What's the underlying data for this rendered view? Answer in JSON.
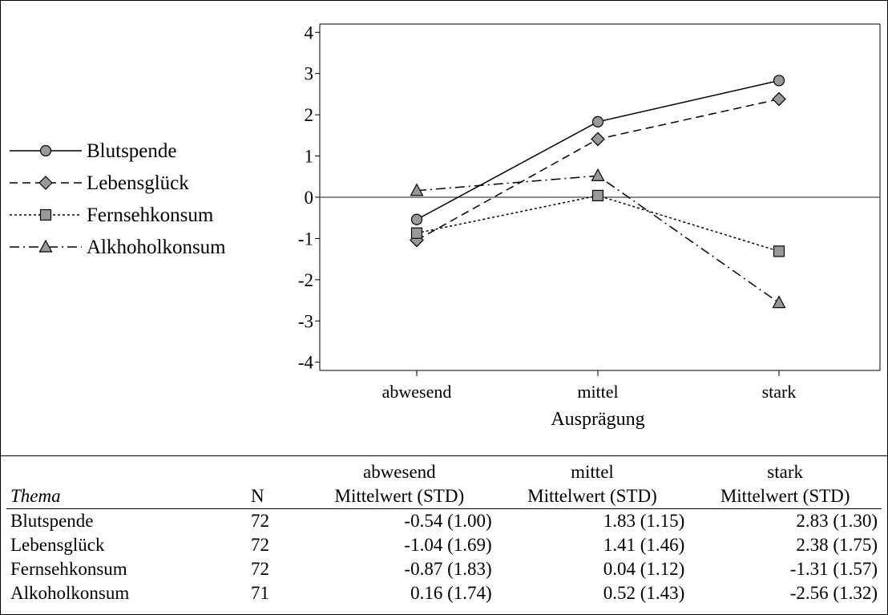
{
  "chart_data": {
    "type": "line",
    "xlabel": "Ausprägung",
    "categories": [
      "abwesend",
      "mittel",
      "stark"
    ],
    "yticks": [
      4,
      3,
      2,
      1,
      0,
      -1,
      -2,
      -3,
      -4
    ],
    "ylim": [
      -4.2,
      4.2
    ],
    "legend_position": "left",
    "series": [
      {
        "name": "Blutspende",
        "marker": "circle",
        "dash": "solid",
        "values": [
          -0.54,
          1.83,
          2.83
        ]
      },
      {
        "name": "Lebensglück",
        "marker": "diamond",
        "dash": "dashed",
        "values": [
          -1.04,
          1.41,
          2.38
        ]
      },
      {
        "name": "Fernsehkonsum",
        "marker": "square",
        "dash": "dotted",
        "values": [
          -0.87,
          0.04,
          -1.31
        ]
      },
      {
        "name": "Alkhoholkonsum",
        "marker": "triangle",
        "dash": "dashdot",
        "values": [
          0.16,
          0.52,
          -2.56
        ]
      }
    ],
    "marker_color": "#999999"
  },
  "table": {
    "groups": [
      "abwesend",
      "mittel",
      "stark"
    ],
    "col_thema": "Thema",
    "col_n": "N",
    "col_stat": "Mittelwert (STD)",
    "rows": [
      {
        "thema": "Blutspende",
        "n": "72",
        "cells": [
          "-0.54 (1.00)",
          "1.83 (1.15)",
          "2.83 (1.30)"
        ]
      },
      {
        "thema": "Lebensglück",
        "n": "72",
        "cells": [
          "-1.04 (1.69)",
          "1.41 (1.46)",
          "2.38 (1.75)"
        ]
      },
      {
        "thema": "Fernsehkonsum",
        "n": "72",
        "cells": [
          "-0.87 (1.83)",
          "0.04 (1.12)",
          "-1.31 (1.57)"
        ]
      },
      {
        "thema": "Alkoholkonsum",
        "n": "71",
        "cells": [
          "0.16 (1.74)",
          "0.52 (1.43)",
          "-2.56 (1.32)"
        ]
      }
    ]
  }
}
